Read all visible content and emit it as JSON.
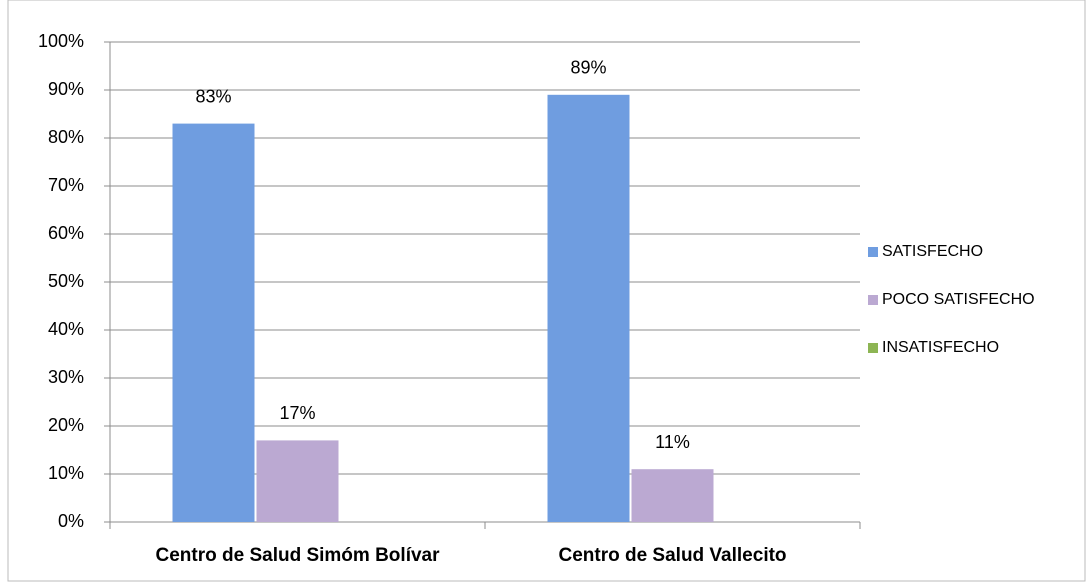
{
  "chart_data": {
    "type": "bar",
    "categories": [
      "Centro de Salud Simóm Bolívar",
      "Centro de Salud Vallecito"
    ],
    "series": [
      {
        "name": "SATISFECHO",
        "color": "#6f9de0",
        "values": [
          83,
          89
        ],
        "value_labels": [
          "83%",
          "89%"
        ]
      },
      {
        "name": "POCO SATISFECHO",
        "color": "#bba9d2",
        "values": [
          17,
          11
        ],
        "value_labels": [
          "17%",
          "11%"
        ]
      },
      {
        "name": "INSATISFECHO",
        "color": "#8db554",
        "values": [
          0,
          0
        ]
      }
    ],
    "ylim": [
      0,
      100
    ],
    "yticks": [
      {
        "value": 0,
        "label": "0%"
      },
      {
        "value": 10,
        "label": "10%"
      },
      {
        "value": 20,
        "label": "20%"
      },
      {
        "value": 30,
        "label": "30%"
      },
      {
        "value": 40,
        "label": "40%"
      },
      {
        "value": 50,
        "label": "50%"
      },
      {
        "value": 60,
        "label": "60%"
      },
      {
        "value": 70,
        "label": "70%"
      },
      {
        "value": 80,
        "label": "80%"
      },
      {
        "value": 90,
        "label": "90%"
      },
      {
        "value": 100,
        "label": "100%"
      }
    ],
    "grid": true,
    "legend": "right"
  }
}
